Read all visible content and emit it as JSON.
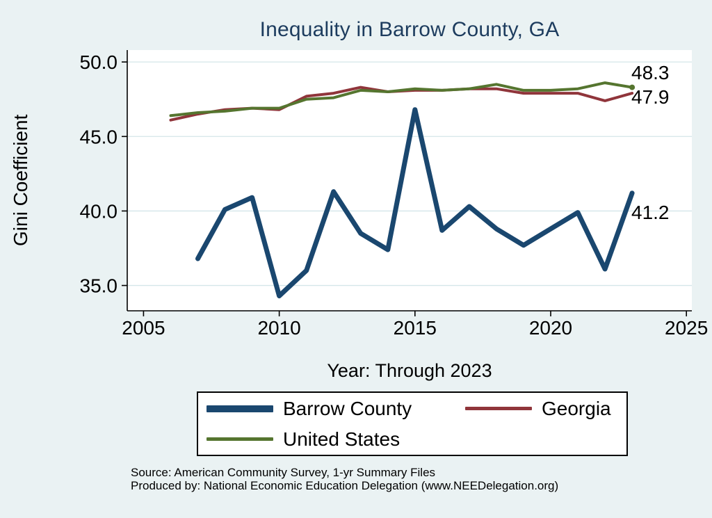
{
  "page": {
    "title": "Inequality in Barrow County, GA",
    "x_axis_label": "Year: Through 2023",
    "y_axis_label": "Gini Coefficient",
    "source_line_1": "Source: American Community Survey, 1-yr Summary Files",
    "source_line_2": "Produced by: National Economic Education Delegation (www.NEEDelegation.org)"
  },
  "colors": {
    "background": "#eaf2f3",
    "plot_background": "#ffffff",
    "grid": "#d4e6e9",
    "axis": "#000000",
    "title": "#1d3c5e",
    "barrow_county": "#1a476f",
    "georgia": "#90353b",
    "united_states": "#55752f"
  },
  "chart_data": {
    "type": "line",
    "title": "Inequality in Barrow County, GA",
    "xlabel": "Year: Through 2023",
    "ylabel": "Gini Coefficient",
    "xlim": [
      2004.4,
      2025.2
    ],
    "ylim": [
      33.3,
      50.8
    ],
    "xticks": [
      2005,
      2010,
      2015,
      2020,
      2025
    ],
    "xtick_labels": [
      "2005",
      "2010",
      "2015",
      "2020",
      "2025"
    ],
    "yticks": [
      35,
      40,
      45,
      50
    ],
    "ytick_labels": [
      "35.0",
      "40.0",
      "45.0",
      "50.0"
    ],
    "grid": "horizontal",
    "legend_position": "bottom",
    "series": [
      {
        "name": "Barrow County",
        "color": "#1a476f",
        "width": 7,
        "end_label": "41.2",
        "end_dot": false,
        "x": [
          2007,
          2008,
          2009,
          2010,
          2011,
          2012,
          2013,
          2014,
          2015,
          2016,
          2017,
          2018,
          2019,
          2020,
          2021,
          2022,
          2023
        ],
        "y": [
          36.8,
          40.1,
          40.9,
          34.3,
          36.0,
          41.3,
          38.5,
          37.4,
          46.8,
          38.7,
          40.3,
          38.8,
          37.7,
          38.8,
          39.9,
          36.1,
          41.2
        ]
      },
      {
        "name": "Georgia",
        "color": "#90353b",
        "width": 4,
        "end_label": "47.9",
        "end_dot": false,
        "x": [
          2006,
          2007,
          2008,
          2009,
          2010,
          2011,
          2012,
          2013,
          2014,
          2015,
          2016,
          2017,
          2018,
          2019,
          2020,
          2021,
          2022,
          2023
        ],
        "y": [
          46.1,
          46.5,
          46.8,
          46.9,
          46.8,
          47.7,
          47.9,
          48.3,
          48.0,
          48.1,
          48.1,
          48.2,
          48.2,
          47.9,
          47.9,
          47.9,
          47.4,
          47.9
        ]
      },
      {
        "name": "United States",
        "color": "#55752f",
        "width": 4,
        "end_label": "48.3",
        "end_dot": true,
        "x": [
          2006,
          2007,
          2008,
          2009,
          2010,
          2011,
          2012,
          2013,
          2014,
          2015,
          2016,
          2017,
          2018,
          2019,
          2020,
          2021,
          2022,
          2023
        ],
        "y": [
          46.4,
          46.6,
          46.7,
          46.9,
          46.9,
          47.5,
          47.6,
          48.1,
          48.0,
          48.2,
          48.1,
          48.2,
          48.5,
          48.1,
          48.1,
          48.2,
          48.6,
          48.3
        ]
      }
    ]
  }
}
